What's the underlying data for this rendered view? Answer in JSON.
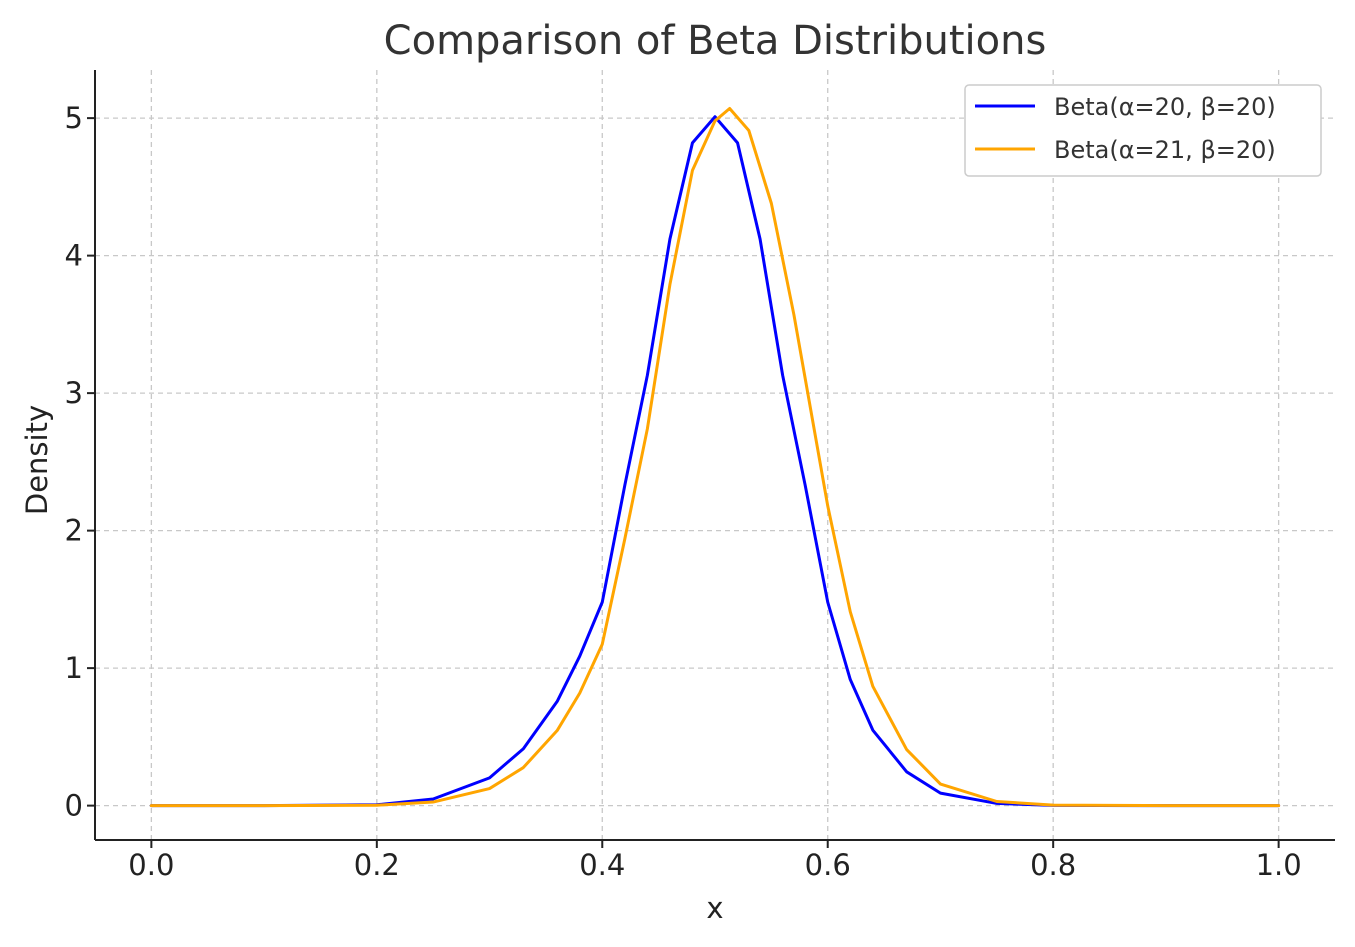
{
  "chart_data": {
    "type": "line",
    "title": "Comparison of Beta Distributions",
    "xlabel": "x",
    "ylabel": "Density",
    "xlim": [
      -0.05,
      1.05
    ],
    "ylim": [
      -0.25,
      5.35
    ],
    "xticks": [
      0.0,
      0.2,
      0.4,
      0.6,
      0.8,
      1.0
    ],
    "xtick_labels": [
      "0.0",
      "0.2",
      "0.4",
      "0.6",
      "0.8",
      "1.0"
    ],
    "yticks": [
      0,
      1,
      2,
      3,
      4,
      5
    ],
    "ytick_labels": [
      "0",
      "1",
      "2",
      "3",
      "4",
      "5"
    ],
    "grid": true,
    "legend_position": "top-right",
    "series": [
      {
        "name": "Beta(α=20, β=20)",
        "color": "#0000ff",
        "x": [
          0.0,
          0.1,
          0.2,
          0.25,
          0.3,
          0.33,
          0.36,
          0.38,
          0.4,
          0.42,
          0.44,
          0.46,
          0.48,
          0.5,
          0.52,
          0.54,
          0.56,
          0.58,
          0.6,
          0.62,
          0.64,
          0.67,
          0.7,
          0.75,
          0.8,
          0.9,
          1.0
        ],
        "y": [
          0.0,
          0.0,
          0.006,
          0.048,
          0.202,
          0.414,
          0.758,
          1.087,
          1.48,
          2.33,
          3.13,
          4.12,
          4.82,
          5.01,
          4.82,
          4.12,
          3.13,
          2.33,
          1.48,
          0.917,
          0.549,
          0.246,
          0.091,
          0.016,
          0.002,
          0.0,
          0.0
        ]
      },
      {
        "name": "Beta(α=21, β=20)",
        "color": "#ffa500",
        "x": [
          0.0,
          0.1,
          0.2,
          0.25,
          0.3,
          0.33,
          0.36,
          0.38,
          0.4,
          0.42,
          0.44,
          0.46,
          0.48,
          0.5,
          0.513,
          0.53,
          0.55,
          0.57,
          0.6,
          0.62,
          0.64,
          0.67,
          0.7,
          0.75,
          0.8,
          0.9,
          1.0
        ],
        "y": [
          0.0,
          0.0,
          0.003,
          0.026,
          0.124,
          0.277,
          0.546,
          0.818,
          1.174,
          1.94,
          2.74,
          3.79,
          4.62,
          4.98,
          5.07,
          4.91,
          4.38,
          3.57,
          2.18,
          1.41,
          0.868,
          0.408,
          0.157,
          0.03,
          0.004,
          0.0,
          0.0
        ]
      }
    ]
  }
}
